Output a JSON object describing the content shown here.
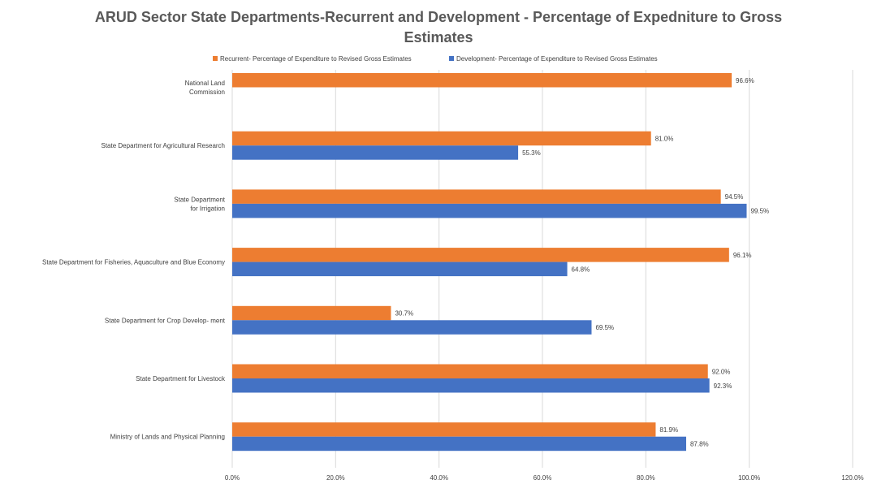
{
  "chart_data": {
    "type": "bar",
    "orientation": "horizontal",
    "title": "ARUD Sector State Departments-Recurrent and Development - Percentage of Expedniture to Gross Estimates",
    "title_lines": [
      "ARUD Sector State Departments-Recurrent and Development - Percentage of Expedniture to Gross",
      "Estimates"
    ],
    "categories": [
      [
        "National Land",
        "Commission"
      ],
      [
        "State Department for Agricultural Research"
      ],
      [
        "State Department",
        "for Irrigation"
      ],
      [
        "State Department for Fisheries, Aquaculture and Blue Economy"
      ],
      [
        "State Department for Crop Develop- ment"
      ],
      [
        "State Department for Livestock"
      ],
      [
        "Ministry of Lands and Physical Planning"
      ]
    ],
    "series": [
      {
        "name": "Recurrent- Percentage of Expenditure to Revised Gross Estimates",
        "color": "#ED7D31",
        "values": [
          96.6,
          81.0,
          94.5,
          96.1,
          30.7,
          92.0,
          81.9
        ],
        "labels": [
          "96.6%",
          "81.0%",
          "94.5%",
          "96.1%",
          "30.7%",
          "92.0%",
          "81.9%"
        ]
      },
      {
        "name": "Development- Percentage of Expenditure to Revised Gross Estimates",
        "color": "#4472C4",
        "values": [
          null,
          55.3,
          99.5,
          64.8,
          69.5,
          92.3,
          87.8
        ],
        "labels": [
          "",
          "55.3%",
          "99.5%",
          "64.8%",
          "69.5%",
          "92.3%",
          "87.8%"
        ]
      }
    ],
    "xlim": [
      0,
      120
    ],
    "ticks": [
      0,
      20,
      40,
      60,
      80,
      100,
      120
    ],
    "tick_labels": [
      "0.0%",
      "20.0%",
      "40.0%",
      "60.0%",
      "80.0%",
      "100.0%",
      "120.0%"
    ],
    "grid": true,
    "gridline_color": "#d9d9d9",
    "legend_position": "top"
  }
}
